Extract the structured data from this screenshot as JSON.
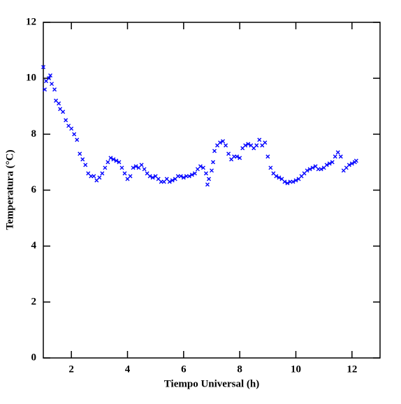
{
  "chart_data": {
    "type": "scatter",
    "x_label": "Tiempo Universal (h)",
    "y_label": "Temperatura (°C)",
    "color": "#0000ff",
    "xlim": [
      1,
      13
    ],
    "ylim": [
      0,
      12
    ],
    "xticks": [
      2,
      4,
      6,
      8,
      10,
      12
    ],
    "yticks": [
      0,
      2,
      4,
      6,
      8,
      10,
      12
    ],
    "x": [
      1.0,
      1.05,
      1.1,
      1.2,
      1.25,
      1.3,
      1.4,
      1.45,
      1.55,
      1.6,
      1.7,
      1.8,
      1.9,
      2.0,
      2.1,
      2.2,
      2.3,
      2.4,
      2.5,
      2.6,
      2.7,
      2.8,
      2.9,
      3.0,
      3.1,
      3.2,
      3.3,
      3.4,
      3.5,
      3.6,
      3.7,
      3.8,
      3.9,
      4.0,
      4.1,
      4.2,
      4.3,
      4.4,
      4.5,
      4.6,
      4.7,
      4.8,
      4.9,
      5.0,
      5.1,
      5.2,
      5.3,
      5.4,
      5.5,
      5.6,
      5.7,
      5.8,
      5.9,
      6.0,
      6.1,
      6.2,
      6.3,
      6.4,
      6.5,
      6.6,
      6.7,
      6.8,
      6.85,
      6.9,
      7.0,
      7.05,
      7.1,
      7.2,
      7.3,
      7.4,
      7.5,
      7.6,
      7.7,
      7.8,
      7.9,
      8.0,
      8.1,
      8.2,
      8.3,
      8.4,
      8.5,
      8.6,
      8.7,
      8.8,
      8.9,
      9.0,
      9.1,
      9.2,
      9.3,
      9.4,
      9.5,
      9.6,
      9.7,
      9.8,
      9.9,
      10.0,
      10.1,
      10.2,
      10.3,
      10.4,
      10.5,
      10.6,
      10.7,
      10.8,
      10.9,
      11.0,
      11.1,
      11.2,
      11.3,
      11.4,
      11.5,
      11.6,
      11.7,
      11.8,
      11.9,
      12.0,
      12.1,
      12.15
    ],
    "values": [
      10.4,
      9.6,
      9.9,
      10.0,
      10.1,
      9.8,
      9.6,
      9.2,
      9.1,
      8.9,
      8.8,
      8.5,
      8.3,
      8.2,
      8.0,
      7.8,
      7.3,
      7.1,
      6.9,
      6.6,
      6.5,
      6.5,
      6.35,
      6.45,
      6.6,
      6.8,
      7.0,
      7.15,
      7.1,
      7.05,
      7.0,
      6.8,
      6.6,
      6.4,
      6.5,
      6.8,
      6.85,
      6.8,
      6.9,
      6.75,
      6.6,
      6.5,
      6.45,
      6.5,
      6.4,
      6.3,
      6.3,
      6.4,
      6.3,
      6.35,
      6.4,
      6.5,
      6.5,
      6.45,
      6.5,
      6.5,
      6.55,
      6.6,
      6.75,
      6.85,
      6.8,
      6.6,
      6.2,
      6.4,
      6.7,
      7.0,
      7.4,
      7.6,
      7.7,
      7.75,
      7.6,
      7.3,
      7.1,
      7.2,
      7.2,
      7.15,
      7.5,
      7.6,
      7.65,
      7.6,
      7.5,
      7.6,
      7.8,
      7.6,
      7.7,
      7.2,
      6.8,
      6.6,
      6.5,
      6.45,
      6.4,
      6.3,
      6.25,
      6.3,
      6.3,
      6.35,
      6.4,
      6.5,
      6.6,
      6.7,
      6.75,
      6.8,
      6.85,
      6.75,
      6.75,
      6.8,
      6.9,
      6.95,
      7.0,
      7.2,
      7.35,
      7.2,
      6.7,
      6.8,
      6.9,
      6.95,
      7.0,
      7.05
    ]
  }
}
